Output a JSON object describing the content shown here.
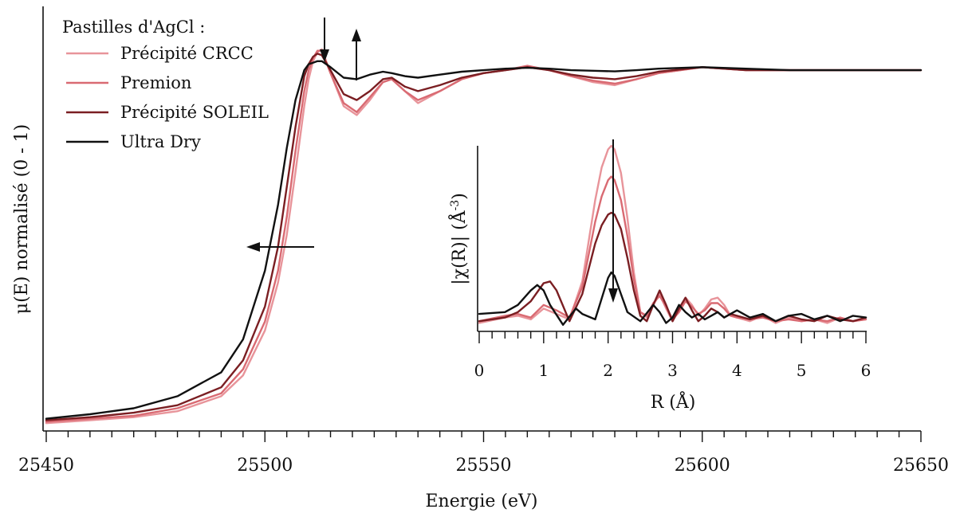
{
  "chart_data": [
    {
      "type": "line",
      "title": "",
      "xlabel": "Energie (eV)",
      "ylabel": "μ(E) normalisé (0 - 1)",
      "xlim": [
        25450,
        25650
      ],
      "ylim": [
        0,
        1.35
      ],
      "x_ticks": [
        25450,
        25500,
        25550,
        25600,
        25650
      ],
      "x_minor_step": 5,
      "grid": false,
      "legend": {
        "title": "Pastilles d'AgCl :",
        "position": "top-left"
      },
      "series": [
        {
          "name": "Précipité CRCC",
          "color": "#e8949a",
          "x": [
            25450,
            25460,
            25470,
            25480,
            25490,
            25495,
            25500,
            25503,
            25505,
            25507,
            25509,
            25510,
            25511,
            25512,
            25513,
            25515,
            25518,
            25521,
            25524,
            25527,
            25529,
            25532,
            25535,
            25540,
            25545,
            25550,
            25555,
            25560,
            25565,
            25570,
            25575,
            25580,
            25585,
            25590,
            25600,
            25610,
            25620,
            25630,
            25640,
            25650
          ],
          "y": [
            0.01,
            0.02,
            0.03,
            0.05,
            0.1,
            0.17,
            0.32,
            0.48,
            0.64,
            0.85,
            1.07,
            1.16,
            1.22,
            1.25,
            1.26,
            1.18,
            1.07,
            1.04,
            1.09,
            1.15,
            1.16,
            1.12,
            1.08,
            1.12,
            1.16,
            1.18,
            1.19,
            1.2,
            1.19,
            1.17,
            1.15,
            1.14,
            1.16,
            1.18,
            1.2,
            1.19,
            1.19,
            1.19,
            1.19,
            1.19
          ]
        },
        {
          "name": "Premion",
          "color": "#d96a72",
          "x": [
            25450,
            25460,
            25470,
            25480,
            25490,
            25495,
            25500,
            25503,
            25505,
            25507,
            25509,
            25510,
            25511,
            25512,
            25513,
            25515,
            25518,
            25521,
            25524,
            25527,
            25529,
            25532,
            25535,
            25540,
            25545,
            25550,
            25555,
            25560,
            25565,
            25570,
            25575,
            25580,
            25585,
            25590,
            25600,
            25610,
            25620,
            25630,
            25640,
            25650
          ],
          "y": [
            0.015,
            0.025,
            0.035,
            0.06,
            0.11,
            0.19,
            0.35,
            0.52,
            0.7,
            0.92,
            1.12,
            1.19,
            1.23,
            1.255,
            1.255,
            1.18,
            1.08,
            1.05,
            1.1,
            1.15,
            1.16,
            1.12,
            1.09,
            1.12,
            1.16,
            1.18,
            1.19,
            1.205,
            1.19,
            1.17,
            1.155,
            1.145,
            1.16,
            1.18,
            1.2,
            1.19,
            1.19,
            1.19,
            1.19,
            1.19
          ]
        },
        {
          "name": "Précipité SOLEIL",
          "color": "#7a1e22",
          "x": [
            25450,
            25460,
            25470,
            25480,
            25490,
            25495,
            25500,
            25503,
            25505,
            25507,
            25509,
            25510,
            25511,
            25512,
            25513,
            25515,
            25518,
            25521,
            25524,
            25527,
            25529,
            25532,
            25535,
            25540,
            25545,
            25550,
            25555,
            25560,
            25565,
            25570,
            25575,
            25580,
            25585,
            25590,
            25600,
            25610,
            25620,
            25630,
            25640,
            25650
          ],
          "y": [
            0.02,
            0.03,
            0.045,
            0.07,
            0.13,
            0.22,
            0.4,
            0.6,
            0.8,
            1.0,
            1.17,
            1.21,
            1.235,
            1.245,
            1.24,
            1.19,
            1.11,
            1.09,
            1.12,
            1.16,
            1.165,
            1.135,
            1.12,
            1.14,
            1.165,
            1.18,
            1.19,
            1.2,
            1.19,
            1.175,
            1.165,
            1.16,
            1.17,
            1.185,
            1.2,
            1.19,
            1.19,
            1.19,
            1.19,
            1.19
          ]
        },
        {
          "name": "Ultra Dry",
          "color": "#111111",
          "x": [
            25450,
            25460,
            25470,
            25480,
            25490,
            25495,
            25500,
            25503,
            25505,
            25507,
            25509,
            25510,
            25511,
            25512,
            25513,
            25515,
            25518,
            25521,
            25524,
            25527,
            25529,
            25532,
            25535,
            25540,
            25545,
            25550,
            25555,
            25560,
            25565,
            25570,
            25575,
            25580,
            25585,
            25590,
            25600,
            25610,
            25620,
            25630,
            25640,
            25650
          ],
          "y": [
            0.025,
            0.04,
            0.06,
            0.1,
            0.18,
            0.29,
            0.52,
            0.74,
            0.93,
            1.09,
            1.19,
            1.21,
            1.215,
            1.22,
            1.22,
            1.2,
            1.165,
            1.16,
            1.175,
            1.185,
            1.18,
            1.17,
            1.165,
            1.175,
            1.185,
            1.19,
            1.195,
            1.198,
            1.195,
            1.19,
            1.188,
            1.186,
            1.19,
            1.195,
            1.2,
            1.195,
            1.19,
            1.19,
            1.19,
            1.19
          ]
        }
      ]
    },
    {
      "type": "line",
      "title": "",
      "xlabel": "R (Å)",
      "ylabel": "|χ(R)| (Å",
      "ylabel_superscript": "-3",
      "ylabel_close": ")",
      "xlim": [
        0,
        6
      ],
      "ylim": [
        0,
        1.0
      ],
      "x_ticks": [
        0,
        1,
        2,
        3,
        4,
        5,
        6
      ],
      "x_minor_step": 0.2,
      "grid": false,
      "series": [
        {
          "name": "Précipité CRCC",
          "color": "#e8949a",
          "x": [
            0,
            0.4,
            0.6,
            0.8,
            1.0,
            1.2,
            1.4,
            1.6,
            1.8,
            1.9,
            2.0,
            2.05,
            2.1,
            2.2,
            2.3,
            2.4,
            2.5,
            2.6,
            2.7,
            2.8,
            2.9,
            3.0,
            3.1,
            3.2,
            3.3,
            3.4,
            3.5,
            3.6,
            3.7,
            3.8,
            3.9,
            4.0,
            4.2,
            4.4,
            4.6,
            4.8,
            5.0,
            5.2,
            5.4,
            5.6,
            5.8,
            6.0
          ],
          "y": [
            0.02,
            0.05,
            0.06,
            0.04,
            0.1,
            0.07,
            0.04,
            0.25,
            0.7,
            0.88,
            0.98,
            1.0,
            0.98,
            0.85,
            0.6,
            0.3,
            0.08,
            0.05,
            0.12,
            0.18,
            0.1,
            0.03,
            0.09,
            0.16,
            0.12,
            0.06,
            0.1,
            0.15,
            0.16,
            0.12,
            0.06,
            0.05,
            0.03,
            0.06,
            0.02,
            0.05,
            0.03,
            0.04,
            0.02,
            0.05,
            0.03,
            0.04
          ]
        },
        {
          "name": "Premion",
          "color": "#d96a72",
          "x": [
            0,
            0.4,
            0.6,
            0.8,
            1.0,
            1.2,
            1.4,
            1.6,
            1.8,
            1.9,
            2.0,
            2.05,
            2.1,
            2.2,
            2.3,
            2.4,
            2.5,
            2.6,
            2.7,
            2.8,
            2.9,
            3.0,
            3.1,
            3.2,
            3.3,
            3.4,
            3.5,
            3.6,
            3.7,
            3.8,
            3.9,
            4.0,
            4.2,
            4.4,
            4.6,
            4.8,
            5.0,
            5.2,
            5.4,
            5.6,
            5.8,
            6.0
          ],
          "y": [
            0.03,
            0.06,
            0.07,
            0.05,
            0.12,
            0.09,
            0.05,
            0.22,
            0.58,
            0.72,
            0.81,
            0.83,
            0.81,
            0.7,
            0.5,
            0.26,
            0.08,
            0.06,
            0.13,
            0.17,
            0.11,
            0.04,
            0.08,
            0.14,
            0.11,
            0.07,
            0.09,
            0.13,
            0.13,
            0.1,
            0.06,
            0.05,
            0.04,
            0.05,
            0.03,
            0.04,
            0.03,
            0.04,
            0.03,
            0.05,
            0.03,
            0.04
          ]
        },
        {
          "name": "Précipité SOLEIL",
          "color": "#7a1e22",
          "x": [
            0,
            0.4,
            0.6,
            0.8,
            1.0,
            1.1,
            1.2,
            1.4,
            1.6,
            1.8,
            1.9,
            2.0,
            2.05,
            2.1,
            2.2,
            2.3,
            2.4,
            2.5,
            2.6,
            2.7,
            2.8,
            2.9,
            3.0,
            3.1,
            3.2,
            3.3,
            3.4,
            3.5,
            3.6,
            3.7,
            3.8,
            3.9,
            4.0,
            4.2,
            4.4,
            4.6,
            4.8,
            5.0,
            5.2,
            5.4,
            5.6,
            5.8,
            6.0
          ],
          "y": [
            0.03,
            0.05,
            0.08,
            0.14,
            0.24,
            0.25,
            0.2,
            0.03,
            0.18,
            0.46,
            0.56,
            0.62,
            0.63,
            0.62,
            0.54,
            0.38,
            0.2,
            0.06,
            0.03,
            0.12,
            0.2,
            0.12,
            0.03,
            0.1,
            0.16,
            0.09,
            0.03,
            0.06,
            0.1,
            0.08,
            0.05,
            0.07,
            0.06,
            0.04,
            0.06,
            0.03,
            0.06,
            0.04,
            0.03,
            0.06,
            0.04,
            0.03,
            0.05
          ]
        },
        {
          "name": "Ultra Dry",
          "color": "#111111",
          "x": [
            0,
            0.4,
            0.6,
            0.8,
            0.9,
            1.0,
            1.1,
            1.3,
            1.5,
            1.6,
            1.8,
            2.0,
            2.05,
            2.1,
            2.2,
            2.3,
            2.5,
            2.7,
            2.8,
            2.9,
            3.0,
            3.1,
            3.2,
            3.3,
            3.4,
            3.5,
            3.6,
            3.7,
            3.8,
            4.0,
            4.2,
            4.4,
            4.6,
            4.8,
            5.0,
            5.2,
            5.4,
            5.6,
            5.8,
            6.0
          ],
          "y": [
            0.07,
            0.08,
            0.12,
            0.2,
            0.23,
            0.2,
            0.12,
            0.01,
            0.1,
            0.07,
            0.04,
            0.27,
            0.3,
            0.28,
            0.18,
            0.08,
            0.03,
            0.12,
            0.08,
            0.02,
            0.05,
            0.12,
            0.08,
            0.05,
            0.07,
            0.04,
            0.06,
            0.08,
            0.05,
            0.09,
            0.05,
            0.07,
            0.03,
            0.06,
            0.07,
            0.04,
            0.06,
            0.03,
            0.06,
            0.05
          ]
        }
      ]
    }
  ]
}
